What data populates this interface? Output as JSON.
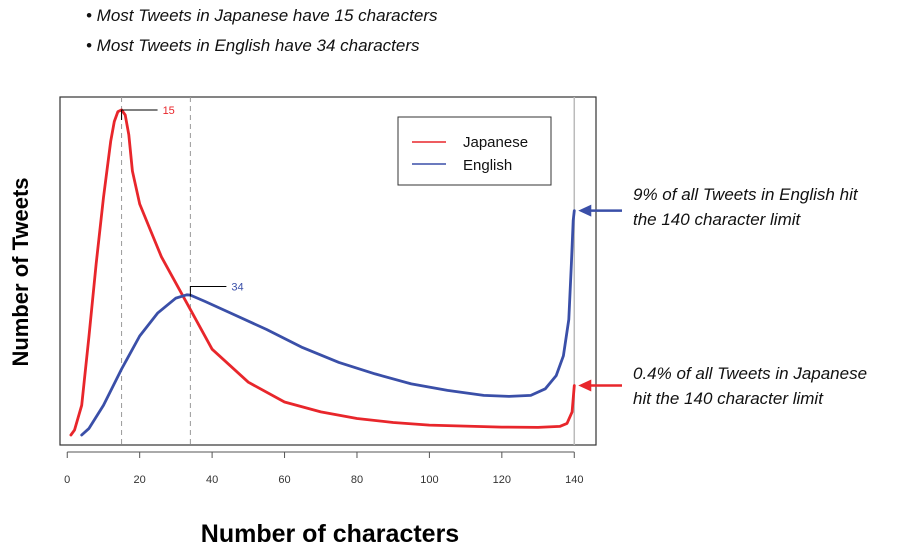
{
  "chart_data": {
    "type": "line",
    "bullets": [
      "• Most Tweets in Japanese have 15 characters",
      "• Most Tweets in English have 34 characters"
    ],
    "xlabel": "Number of characters",
    "ylabel": "Number of Tweets",
    "xlim": [
      -2,
      146
    ],
    "ylim": [
      0,
      100
    ],
    "xticks": [
      0,
      20,
      40,
      60,
      80,
      100,
      120,
      140
    ],
    "grid": false,
    "legend_position": "top-right",
    "series": [
      {
        "name": "Japanese",
        "color": "#e8262b",
        "points": [
          [
            1,
            0
          ],
          [
            2,
            1.5
          ],
          [
            4,
            9
          ],
          [
            6,
            30
          ],
          [
            8,
            52
          ],
          [
            10,
            72
          ],
          [
            12,
            89
          ],
          [
            13,
            95
          ],
          [
            14,
            98
          ],
          [
            15,
            98.5
          ],
          [
            16,
            97
          ],
          [
            17,
            91
          ],
          [
            18,
            80
          ],
          [
            20,
            70
          ],
          [
            23,
            62
          ],
          [
            26,
            54
          ],
          [
            30,
            46
          ],
          [
            34,
            38
          ],
          [
            40,
            26
          ],
          [
            50,
            16
          ],
          [
            60,
            10
          ],
          [
            70,
            7
          ],
          [
            80,
            5
          ],
          [
            90,
            3.8
          ],
          [
            100,
            3
          ],
          [
            110,
            2.7
          ],
          [
            120,
            2.4
          ],
          [
            130,
            2.3
          ],
          [
            136,
            2.6
          ],
          [
            138,
            3.5
          ],
          [
            139.4,
            7
          ],
          [
            140,
            15
          ]
        ]
      },
      {
        "name": "English",
        "color": "#3a4fa8",
        "points": [
          [
            4,
            0
          ],
          [
            6,
            2
          ],
          [
            10,
            9
          ],
          [
            15,
            20
          ],
          [
            20,
            30
          ],
          [
            25,
            37
          ],
          [
            30,
            41.5
          ],
          [
            33,
            42.5
          ],
          [
            34,
            42.4
          ],
          [
            38,
            40.5
          ],
          [
            45,
            37
          ],
          [
            55,
            32
          ],
          [
            65,
            26.5
          ],
          [
            75,
            22
          ],
          [
            85,
            18.5
          ],
          [
            95,
            15.5
          ],
          [
            105,
            13.5
          ],
          [
            115,
            12
          ],
          [
            122,
            11.7
          ],
          [
            128,
            12
          ],
          [
            132,
            14
          ],
          [
            135,
            18
          ],
          [
            137,
            24
          ],
          [
            138.5,
            35
          ],
          [
            139.2,
            52
          ],
          [
            139.7,
            65
          ],
          [
            140,
            68
          ]
        ]
      }
    ],
    "peaks": [
      {
        "x": 15,
        "label": "15",
        "color": "#e8262b",
        "y": 98.5
      },
      {
        "x": 34,
        "label": "34",
        "color": "#3a4fa8",
        "y": 45
      }
    ],
    "limit_x": 140,
    "annotations": [
      {
        "line1": "9% of all Tweets in English hit",
        "line2": "the 140 character limit",
        "arrow_color": "#3a4fa8",
        "y": 68
      },
      {
        "line1": "0.4% of all Tweets in Japanese",
        "line2": "hit the 140 character limit",
        "arrow_color": "#e8262b",
        "y": 15
      }
    ]
  }
}
